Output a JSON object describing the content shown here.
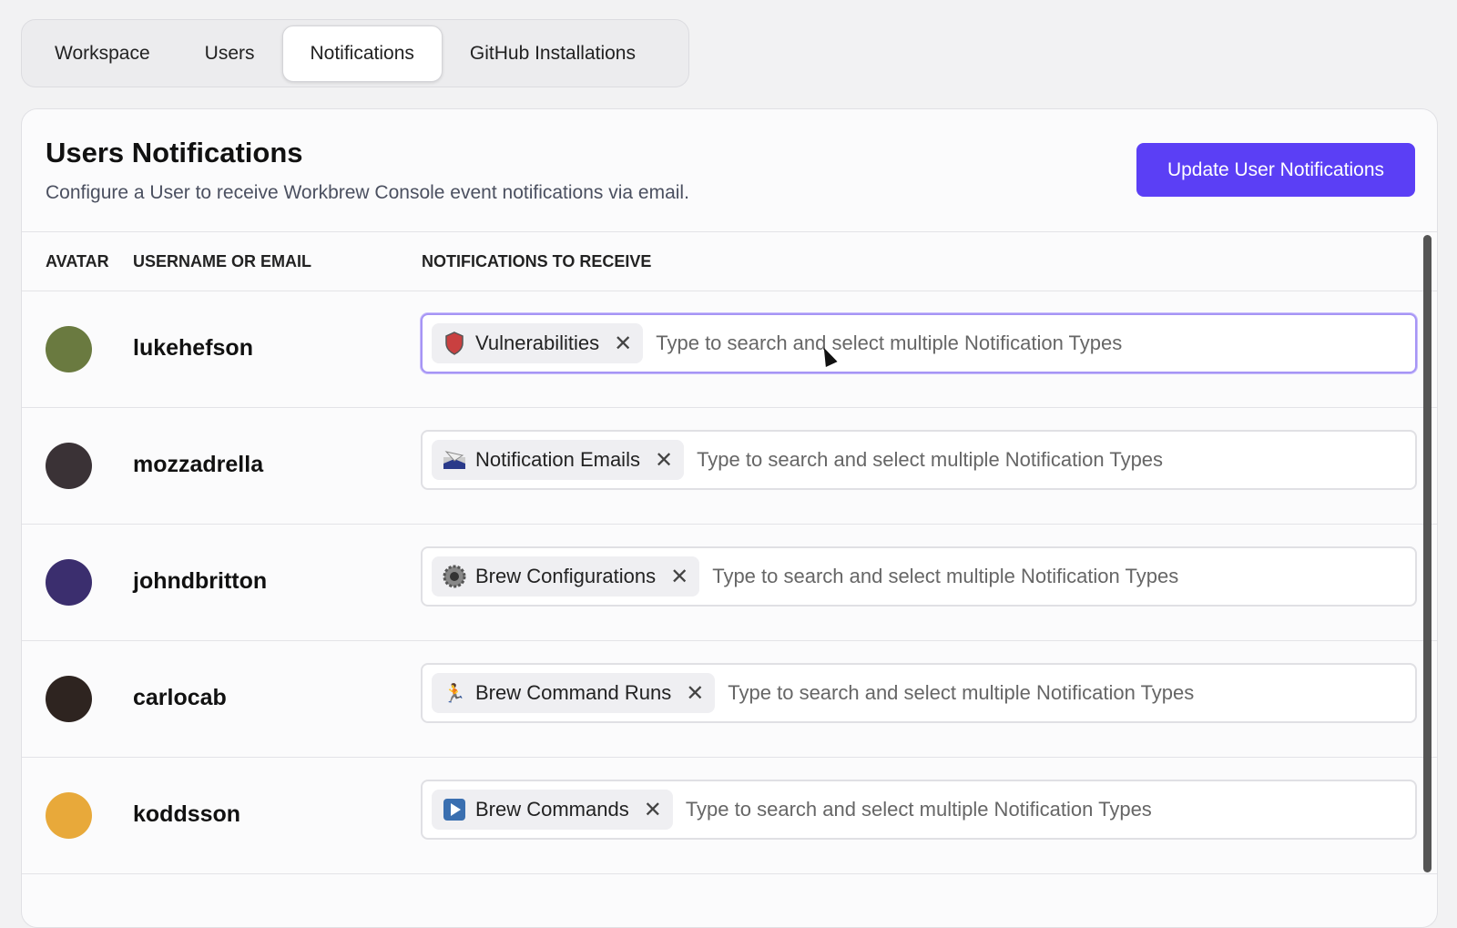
{
  "tabs": [
    {
      "label": "Workspace"
    },
    {
      "label": "Users"
    },
    {
      "label": "Notifications",
      "active": true
    },
    {
      "label": "GitHub Installations"
    }
  ],
  "header": {
    "title": "Users Notifications",
    "subtitle": "Configure a User to receive Workbrew Console event notifications via email.",
    "button": "Update User Notifications"
  },
  "columns": {
    "avatar": "AVATAR",
    "username": "USERNAME OR EMAIL",
    "notifications": "NOTIFICATIONS TO RECEIVE"
  },
  "placeholder": "Type to search and select multiple Notification Types",
  "accent": "#5b3ff5",
  "rows": [
    {
      "username": "lukehefson",
      "chip": "Vulnerabilities",
      "icon": "shield-icon",
      "avatar_color": "#6a7a40"
    },
    {
      "username": "mozzadrella",
      "chip": "Notification Emails",
      "icon": "mail-icon",
      "avatar_color": "#3a3236"
    },
    {
      "username": "johndbritton",
      "chip": "Brew Configurations",
      "icon": "gear-icon",
      "avatar_color": "#3b2e6e"
    },
    {
      "username": "carlocab",
      "chip": "Brew Command Runs",
      "icon": "runner-icon",
      "avatar_color": "#2e2420"
    },
    {
      "username": "koddsson",
      "chip": "Brew Commands",
      "icon": "play-icon",
      "avatar_color": "#e8a93a"
    }
  ]
}
